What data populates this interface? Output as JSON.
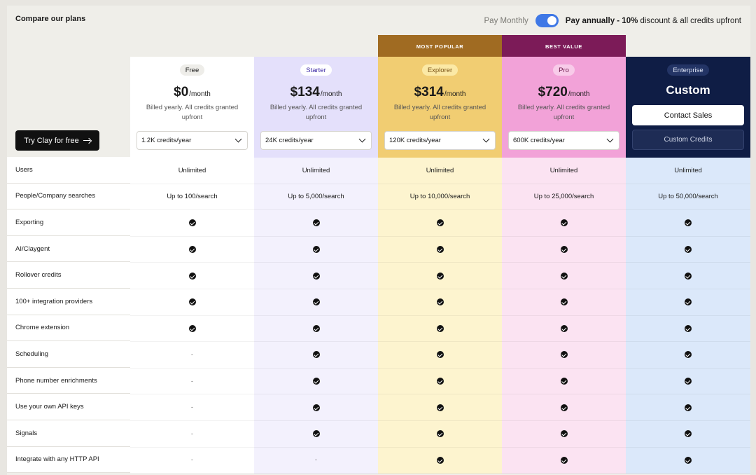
{
  "page": {
    "title": "Compare our plans",
    "try_button": "Try Clay for free"
  },
  "billing": {
    "monthly_label": "Pay Monthly",
    "annual_bold": "Pay annually - 10%",
    "annual_rest": " discount & all credits upfront"
  },
  "badges": {
    "explorer": "MOST POPULAR",
    "pro": "BEST VALUE"
  },
  "features": [
    "Users",
    "People/Company searches",
    "Exporting",
    "AI/Claygent",
    "Rollover credits",
    "100+ integration providers",
    "Chrome extension",
    "Scheduling",
    "Phone number enrichments",
    "Use your own API keys",
    "Signals",
    "Integrate with any HTTP API"
  ],
  "plans": [
    {
      "name": "Free",
      "price": "$0",
      "per": "/month",
      "billed": "Billed yearly. All credits granted upfront",
      "credits": "1.2K credits/year",
      "values": [
        "Unlimited",
        "Up to 100/search",
        "check",
        "check",
        "check",
        "check",
        "check",
        "-",
        "-",
        "-",
        "-",
        "-"
      ]
    },
    {
      "name": "Starter",
      "price": "$134",
      "per": "/month",
      "billed": "Billed yearly. All credits granted upfront",
      "credits": "24K credits/year",
      "values": [
        "Unlimited",
        "Up to 5,000/search",
        "check",
        "check",
        "check",
        "check",
        "check",
        "check",
        "check",
        "check",
        "check",
        "-"
      ]
    },
    {
      "name": "Explorer",
      "price": "$314",
      "per": "/month",
      "billed": "Billed yearly. All credits granted upfront",
      "credits": "120K credits/year",
      "values": [
        "Unlimited",
        "Up to 10,000/search",
        "check",
        "check",
        "check",
        "check",
        "check",
        "check",
        "check",
        "check",
        "check",
        "check"
      ]
    },
    {
      "name": "Pro",
      "price": "$720",
      "per": "/month",
      "billed": "Billed yearly. All credits granted upfront",
      "credits": "600K credits/year",
      "values": [
        "Unlimited",
        "Up to 25,000/search",
        "check",
        "check",
        "check",
        "check",
        "check",
        "check",
        "check",
        "check",
        "check",
        "check"
      ]
    },
    {
      "name": "Enterprise",
      "price": "Custom",
      "contact": "Contact Sales",
      "custom_credits": "Custom Credits",
      "values": [
        "Unlimited",
        "Up to 50,000/search",
        "check",
        "check",
        "check",
        "check",
        "check",
        "check",
        "check",
        "check",
        "check",
        "check"
      ]
    }
  ],
  "colors": {
    "free_head": "#ffffff",
    "free_body": "#ffffff",
    "starter_head": "#e4e0fb",
    "starter_body": "#f3f1fd",
    "starter_pill": "#fff",
    "explorer_head": "#f1cd72",
    "explorer_body": "#fdf4cf",
    "explorer_badge": "#a06b22",
    "pro_head": "#f2a2d8",
    "pro_body": "#fbe3f2",
    "pro_badge": "#7c1b58",
    "enterprise_head": "#0f1d45",
    "enterprise_body": "#dbe8fa"
  }
}
